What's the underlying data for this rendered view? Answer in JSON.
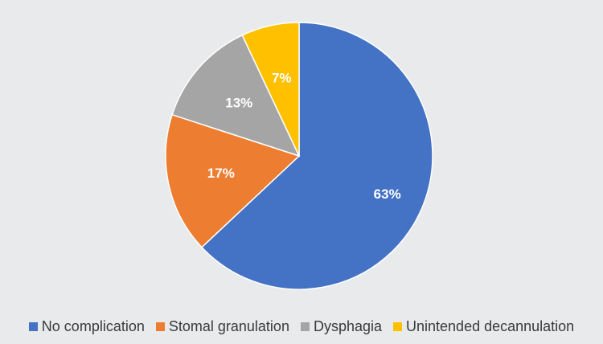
{
  "chart_data": {
    "type": "pie",
    "title": "",
    "slices": [
      {
        "name": "No complication",
        "value": 63,
        "label": "63%",
        "color": "#4472c4"
      },
      {
        "name": "Stomal granulation",
        "value": 17,
        "label": "17%",
        "color": "#ed7d31"
      },
      {
        "name": "Dysphagia",
        "value": 13,
        "label": "13%",
        "color": "#a5a5a5"
      },
      {
        "name": "Unintended decannulation",
        "value": 7,
        "label": "7%",
        "color": "#ffc000"
      }
    ],
    "legend": {
      "position": "bottom",
      "items": [
        {
          "label": "No complication",
          "color": "#4472c4"
        },
        {
          "label": "Stomal granulation",
          "color": "#ed7d31"
        },
        {
          "label": "Dysphagia",
          "color": "#a5a5a5"
        },
        {
          "label": "Unintended decannulation",
          "color": "#ffc000"
        }
      ]
    }
  }
}
